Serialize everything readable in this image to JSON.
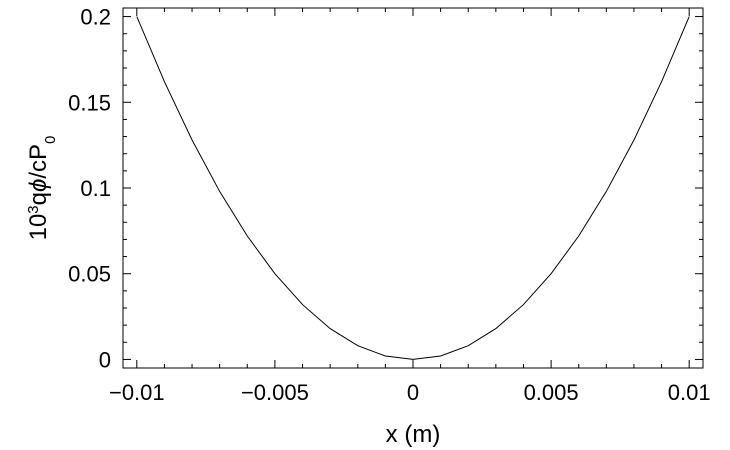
{
  "chart_data": {
    "type": "line",
    "title": "",
    "xlabel": "x (m)",
    "ylabel": {
      "base": "10",
      "exp": "3",
      "middle": "q",
      "phi": "ϕ",
      "after_phi": "/cP",
      "sub": "0"
    },
    "xlim": [
      -0.0105,
      0.0105
    ],
    "ylim": [
      -0.005,
      0.205
    ],
    "x_ticks": [
      {
        "value": -0.01,
        "label": "−0.01"
      },
      {
        "value": -0.005,
        "label": "−0.005"
      },
      {
        "value": 0,
        "label": "0"
      },
      {
        "value": 0.005,
        "label": "0.005"
      },
      {
        "value": 0.01,
        "label": "0.01"
      }
    ],
    "y_ticks": [
      {
        "value": 0,
        "label": "0"
      },
      {
        "value": 0.05,
        "label": "0.05"
      },
      {
        "value": 0.1,
        "label": "0.1"
      },
      {
        "value": 0.15,
        "label": "0.15"
      },
      {
        "value": 0.2,
        "label": "0.2"
      }
    ],
    "grid": false,
    "series": [
      {
        "x": [
          -0.01,
          -0.009,
          -0.008,
          -0.007,
          -0.006,
          -0.005,
          -0.004,
          -0.003,
          -0.002,
          -0.001,
          0,
          0.001,
          0.002,
          0.003,
          0.004,
          0.005,
          0.006,
          0.007,
          0.008,
          0.009,
          0.01
        ],
        "y": [
          0.2,
          0.162,
          0.128,
          0.098,
          0.072,
          0.05,
          0.032,
          0.018,
          0.008,
          0.002,
          0,
          0.002,
          0.008,
          0.018,
          0.032,
          0.05,
          0.072,
          0.098,
          0.128,
          0.162,
          0.2
        ],
        "color": "#000000"
      }
    ]
  }
}
